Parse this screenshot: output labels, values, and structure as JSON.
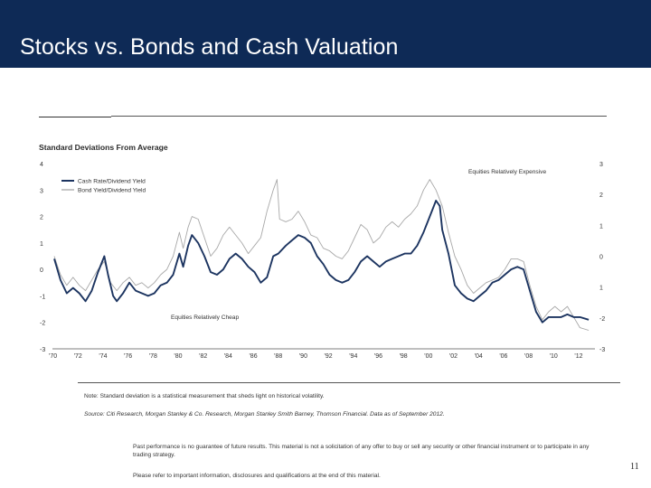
{
  "slide": {
    "title": "Stocks vs. Bonds and Cash Valuation",
    "note": "Note: Standard deviation is a statistical measurement that sheds light on historical volatility.",
    "source": "Source: Citi Research, Morgan Stanley & Co. Research, Morgan Stanley Smith Barney, Thomson Financial. Data as of September 2012.",
    "disclaimer_1": "Past performance is no guarantee of future results. This material is not a solicitation of any offer to buy or sell any security or other financial instrument or to participate in any trading strategy.",
    "disclaimer_2": "Please refer to important information, disclosures and qualifications at the end of this material.",
    "page_number": "11"
  },
  "colors": {
    "title_bar": "#0e2a56",
    "series_dark": "#1c3460",
    "series_light": "#a8a8a8"
  },
  "chart_data": {
    "type": "line",
    "title": "Standard Deviations From Average",
    "left_ylim": [
      -3,
      4
    ],
    "left_yticks": [
      "4",
      "3",
      "2",
      "1",
      "0",
      "-1",
      "-2",
      "-3"
    ],
    "right_ylim": [
      -3,
      3
    ],
    "right_yticks": [
      "3",
      "2",
      "1",
      "0",
      "1",
      "-2",
      "-3"
    ],
    "xlim": [
      1970,
      2013.2
    ],
    "xticks": [
      "'70",
      "'72",
      "'74",
      "'76",
      "'78",
      "'80",
      "'82",
      "'84",
      "'86",
      "'88",
      "'90",
      "'92",
      "'94",
      "'96",
      "'98",
      "'00",
      "'02",
      "'04",
      "'06",
      "'08",
      "'10",
      "'12"
    ],
    "annotations": {
      "expensive": "Equities Relatively Expensive",
      "cheap": "Equities Relatively Cheap"
    },
    "legend_position": "top-left",
    "series": [
      {
        "name": "Cash Rate/Dividend Yield",
        "color": "#1c3460",
        "axis": "left",
        "points": [
          [
            1970.0,
            0.4
          ],
          [
            1970.5,
            -0.4
          ],
          [
            1971.0,
            -0.9
          ],
          [
            1971.5,
            -0.7
          ],
          [
            1972.0,
            -0.9
          ],
          [
            1972.5,
            -1.2
          ],
          [
            1973.0,
            -0.8
          ],
          [
            1973.5,
            -0.1
          ],
          [
            1974.0,
            0.5
          ],
          [
            1974.3,
            -0.2
          ],
          [
            1974.7,
            -1.0
          ],
          [
            1975.0,
            -1.2
          ],
          [
            1975.5,
            -0.9
          ],
          [
            1976.0,
            -0.5
          ],
          [
            1976.5,
            -0.8
          ],
          [
            1977.0,
            -0.9
          ],
          [
            1977.5,
            -1.0
          ],
          [
            1978.0,
            -0.9
          ],
          [
            1978.5,
            -0.6
          ],
          [
            1979.0,
            -0.5
          ],
          [
            1979.5,
            -0.2
          ],
          [
            1980.0,
            0.6
          ],
          [
            1980.3,
            0.1
          ],
          [
            1980.7,
            0.9
          ],
          [
            1981.0,
            1.3
          ],
          [
            1981.5,
            1.0
          ],
          [
            1982.0,
            0.5
          ],
          [
            1982.5,
            -0.1
          ],
          [
            1983.0,
            -0.2
          ],
          [
            1983.5,
            0.0
          ],
          [
            1984.0,
            0.4
          ],
          [
            1984.5,
            0.6
          ],
          [
            1985.0,
            0.4
          ],
          [
            1985.5,
            0.1
          ],
          [
            1986.0,
            -0.1
          ],
          [
            1986.5,
            -0.5
          ],
          [
            1987.0,
            -0.3
          ],
          [
            1987.5,
            0.5
          ],
          [
            1987.9,
            0.6
          ],
          [
            1988.5,
            0.9
          ],
          [
            1989.0,
            1.1
          ],
          [
            1989.5,
            1.3
          ],
          [
            1990.0,
            1.2
          ],
          [
            1990.5,
            1.0
          ],
          [
            1991.0,
            0.5
          ],
          [
            1991.5,
            0.2
          ],
          [
            1992.0,
            -0.2
          ],
          [
            1992.5,
            -0.4
          ],
          [
            1993.0,
            -0.5
          ],
          [
            1993.5,
            -0.4
          ],
          [
            1994.0,
            -0.1
          ],
          [
            1994.5,
            0.3
          ],
          [
            1995.0,
            0.5
          ],
          [
            1995.5,
            0.3
          ],
          [
            1996.0,
            0.1
          ],
          [
            1996.5,
            0.3
          ],
          [
            1997.0,
            0.4
          ],
          [
            1997.5,
            0.5
          ],
          [
            1998.0,
            0.6
          ],
          [
            1998.5,
            0.6
          ],
          [
            1999.0,
            0.9
          ],
          [
            1999.5,
            1.4
          ],
          [
            2000.0,
            2.0
          ],
          [
            2000.5,
            2.6
          ],
          [
            2000.8,
            2.4
          ],
          [
            2001.0,
            1.5
          ],
          [
            2001.5,
            0.6
          ],
          [
            2002.0,
            -0.6
          ],
          [
            2002.5,
            -0.9
          ],
          [
            2003.0,
            -1.1
          ],
          [
            2003.5,
            -1.2
          ],
          [
            2004.0,
            -1.0
          ],
          [
            2004.5,
            -0.8
          ],
          [
            2005.0,
            -0.5
          ],
          [
            2005.5,
            -0.4
          ],
          [
            2006.0,
            -0.2
          ],
          [
            2006.5,
            0.0
          ],
          [
            2007.0,
            0.1
          ],
          [
            2007.5,
            0.0
          ],
          [
            2008.0,
            -0.8
          ],
          [
            2008.5,
            -1.6
          ],
          [
            2009.0,
            -2.0
          ],
          [
            2009.5,
            -1.8
          ],
          [
            2010.0,
            -1.8
          ],
          [
            2010.5,
            -1.8
          ],
          [
            2011.0,
            -1.7
          ],
          [
            2011.5,
            -1.8
          ],
          [
            2012.0,
            -1.8
          ],
          [
            2012.7,
            -1.9
          ]
        ]
      },
      {
        "name": "Bond Yield/Dividend Yield",
        "color": "#a8a8a8",
        "axis": "left",
        "points": [
          [
            1970.0,
            0.5
          ],
          [
            1970.5,
            -0.2
          ],
          [
            1971.0,
            -0.6
          ],
          [
            1971.5,
            -0.3
          ],
          [
            1972.0,
            -0.6
          ],
          [
            1972.5,
            -0.8
          ],
          [
            1973.0,
            -0.4
          ],
          [
            1973.5,
            0.0
          ],
          [
            1974.0,
            0.3
          ],
          [
            1974.5,
            -0.5
          ],
          [
            1975.0,
            -0.8
          ],
          [
            1975.5,
            -0.5
          ],
          [
            1976.0,
            -0.3
          ],
          [
            1976.5,
            -0.6
          ],
          [
            1977.0,
            -0.5
          ],
          [
            1977.5,
            -0.7
          ],
          [
            1978.0,
            -0.5
          ],
          [
            1978.5,
            -0.2
          ],
          [
            1979.0,
            0.0
          ],
          [
            1979.5,
            0.5
          ],
          [
            1980.0,
            1.4
          ],
          [
            1980.3,
            0.8
          ],
          [
            1980.7,
            1.6
          ],
          [
            1981.0,
            2.0
          ],
          [
            1981.5,
            1.9
          ],
          [
            1982.0,
            1.2
          ],
          [
            1982.5,
            0.5
          ],
          [
            1983.0,
            0.8
          ],
          [
            1983.5,
            1.3
          ],
          [
            1984.0,
            1.6
          ],
          [
            1984.5,
            1.3
          ],
          [
            1985.0,
            1.0
          ],
          [
            1985.5,
            0.6
          ],
          [
            1986.0,
            0.9
          ],
          [
            1986.5,
            1.2
          ],
          [
            1987.0,
            2.2
          ],
          [
            1987.5,
            3.0
          ],
          [
            1987.8,
            3.4
          ],
          [
            1988.0,
            1.9
          ],
          [
            1988.5,
            1.8
          ],
          [
            1989.0,
            1.9
          ],
          [
            1989.5,
            2.2
          ],
          [
            1990.0,
            1.8
          ],
          [
            1990.5,
            1.3
          ],
          [
            1991.0,
            1.2
          ],
          [
            1991.5,
            0.8
          ],
          [
            1992.0,
            0.7
          ],
          [
            1992.5,
            0.5
          ],
          [
            1993.0,
            0.4
          ],
          [
            1993.5,
            0.7
          ],
          [
            1994.0,
            1.2
          ],
          [
            1994.5,
            1.7
          ],
          [
            1995.0,
            1.5
          ],
          [
            1995.5,
            1.0
          ],
          [
            1996.0,
            1.2
          ],
          [
            1996.5,
            1.6
          ],
          [
            1997.0,
            1.8
          ],
          [
            1997.5,
            1.6
          ],
          [
            1998.0,
            1.9
          ],
          [
            1998.5,
            2.1
          ],
          [
            1999.0,
            2.4
          ],
          [
            1999.5,
            3.0
          ],
          [
            2000.0,
            3.4
          ],
          [
            2000.5,
            3.0
          ],
          [
            2001.0,
            2.4
          ],
          [
            2001.5,
            1.4
          ],
          [
            2002.0,
            0.5
          ],
          [
            2002.5,
            0.0
          ],
          [
            2003.0,
            -0.6
          ],
          [
            2003.5,
            -0.9
          ],
          [
            2004.0,
            -0.7
          ],
          [
            2004.5,
            -0.5
          ],
          [
            2005.0,
            -0.4
          ],
          [
            2005.5,
            -0.3
          ],
          [
            2006.0,
            0.0
          ],
          [
            2006.5,
            0.4
          ],
          [
            2007.0,
            0.4
          ],
          [
            2007.5,
            0.3
          ],
          [
            2008.0,
            -0.6
          ],
          [
            2008.5,
            -1.4
          ],
          [
            2009.0,
            -1.9
          ],
          [
            2009.5,
            -1.6
          ],
          [
            2010.0,
            -1.4
          ],
          [
            2010.5,
            -1.6
          ],
          [
            2011.0,
            -1.4
          ],
          [
            2011.5,
            -1.8
          ],
          [
            2012.0,
            -2.2
          ],
          [
            2012.7,
            -2.3
          ]
        ]
      }
    ]
  }
}
